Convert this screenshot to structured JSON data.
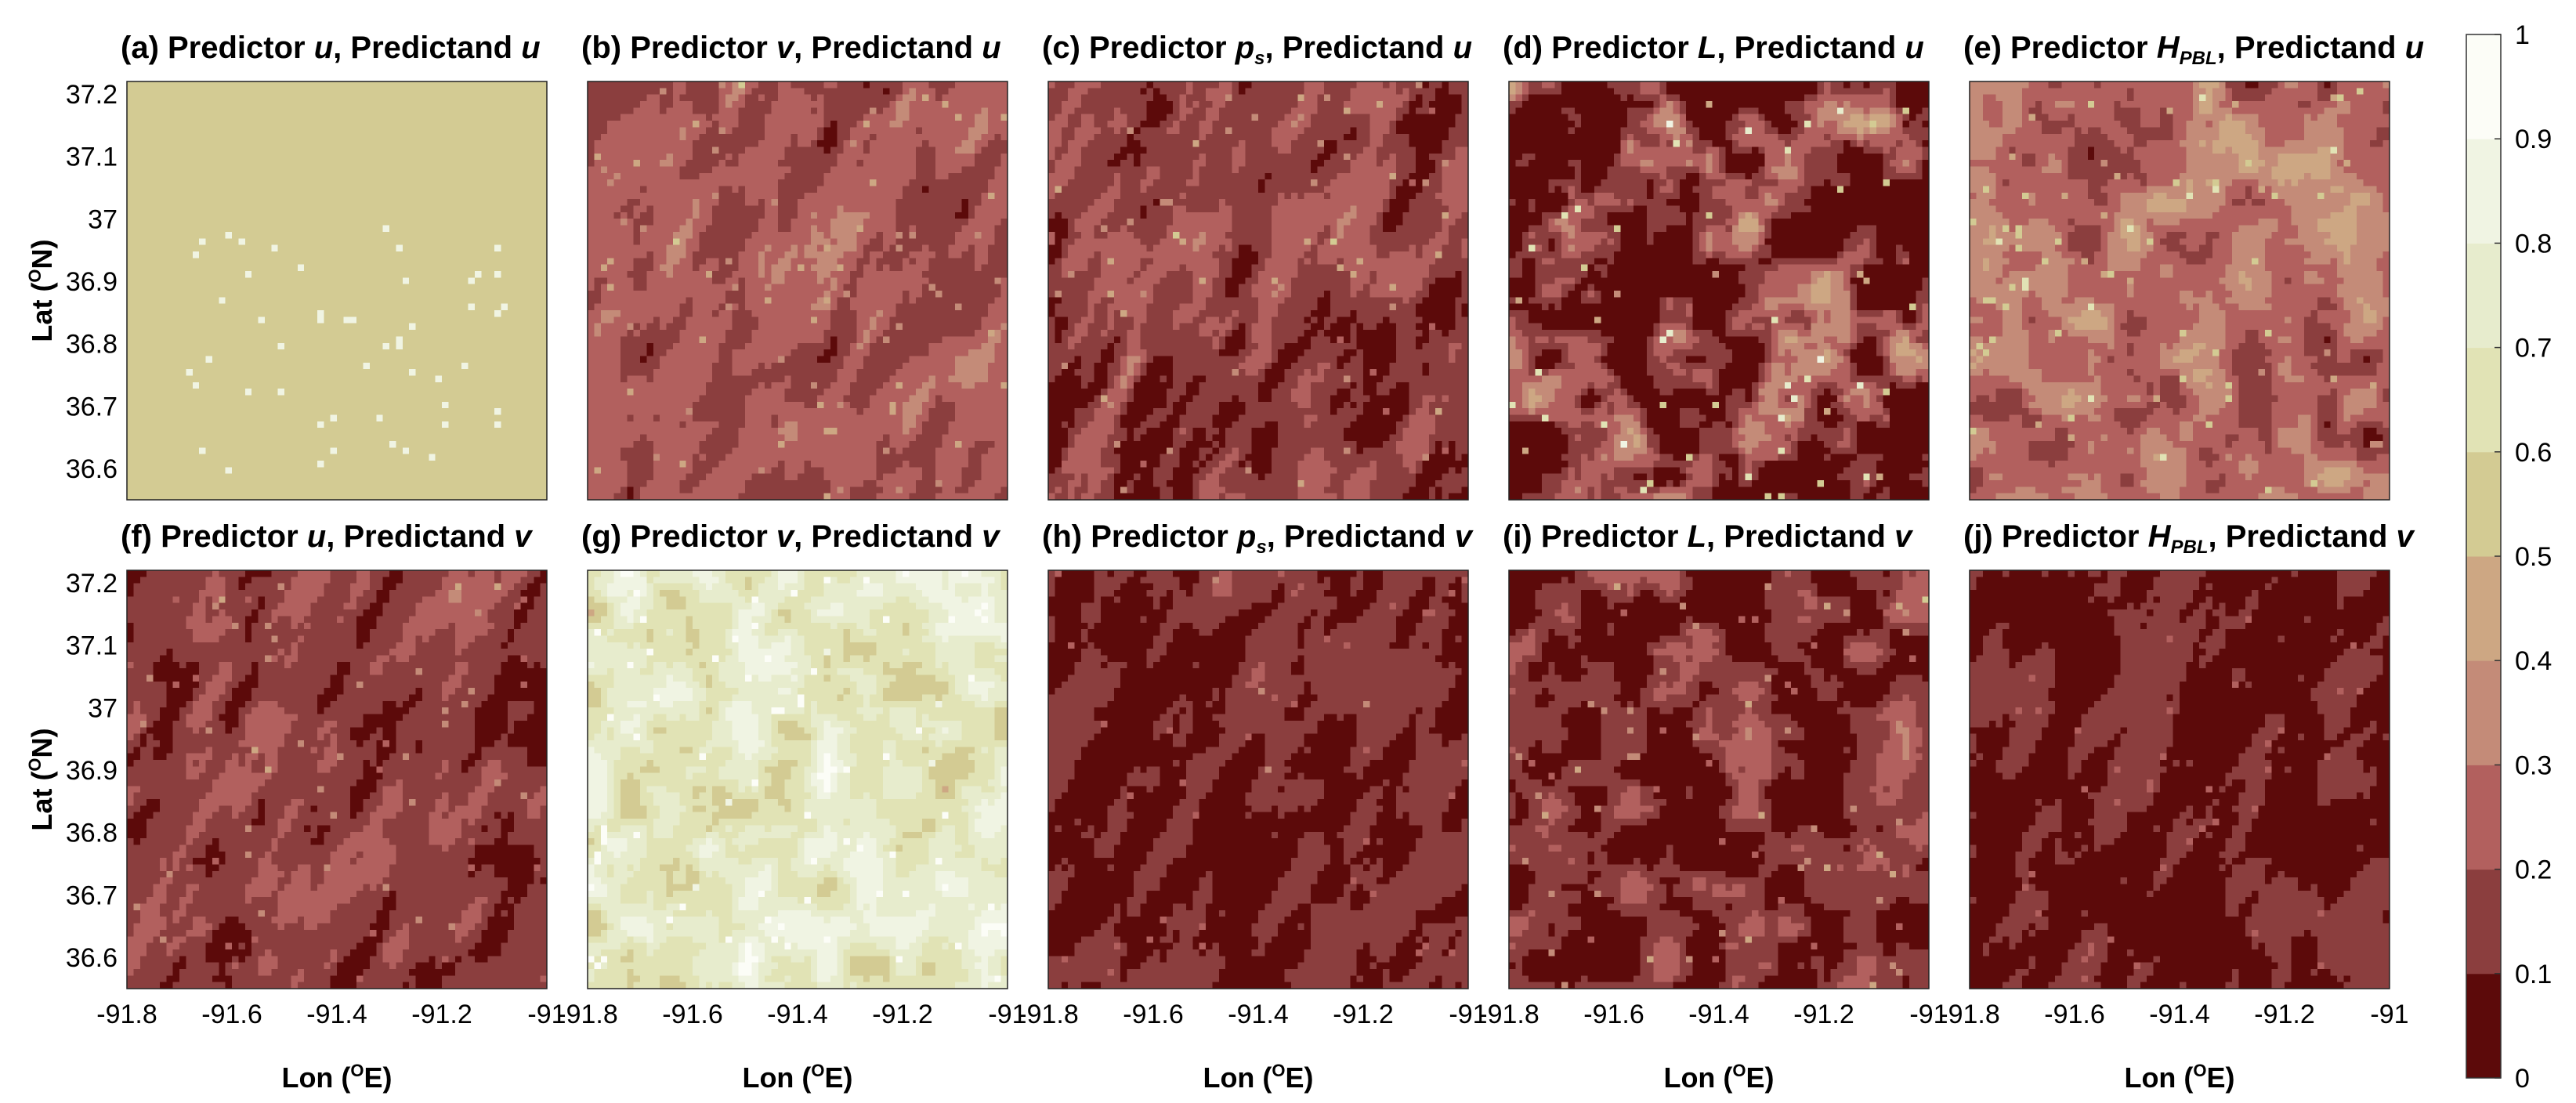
{
  "chart_data": {
    "type": "heatmap",
    "figure_description_note": "",
    "panels": [
      {
        "id": "a",
        "label": "(a) Predictor ",
        "predictor": "u",
        "predictor_sub": "",
        "mid": ", Predictand ",
        "predictand": "u",
        "base_level": 0.55,
        "spread": 0.02,
        "mottle": "speckle"
      },
      {
        "id": "b",
        "label": "(b) Predictor ",
        "predictor": "v",
        "predictor_sub": "",
        "mid": ", Predictand ",
        "predictand": "u",
        "base_level": 0.22,
        "spread": 0.12,
        "mottle": "streak"
      },
      {
        "id": "c",
        "label": "(c) Predictor ",
        "predictor": "p",
        "predictor_sub": "s",
        "mid": ", Predictand ",
        "predictand": "u",
        "base_level": 0.16,
        "spread": 0.14,
        "mottle": "streak"
      },
      {
        "id": "d",
        "label": "(d) Predictor ",
        "predictor": "L",
        "predictor_sub": "",
        "mid": ", Predictand ",
        "predictand": "u",
        "base_level": 0.14,
        "spread": 0.3,
        "mottle": "blob"
      },
      {
        "id": "e",
        "label": "(e) Predictor ",
        "predictor": "H",
        "predictor_sub": "PBL",
        "mid": ", Predictand ",
        "predictand": "u",
        "base_level": 0.28,
        "spread": 0.16,
        "mottle": "blob"
      },
      {
        "id": "f",
        "label": "(f) Predictor ",
        "predictor": "u",
        "predictor_sub": "",
        "mid": ", Predictand ",
        "predictand": "v",
        "base_level": 0.15,
        "spread": 0.12,
        "mottle": "streak"
      },
      {
        "id": "g",
        "label": "(g) Predictor ",
        "predictor": "v",
        "predictor_sub": "",
        "mid": ", Predictand ",
        "predictand": "v",
        "base_level": 0.72,
        "spread": 0.18,
        "mottle": "blob"
      },
      {
        "id": "h",
        "label": "(h) Predictor ",
        "predictor": "p",
        "predictor_sub": "s",
        "mid": ", Predictand ",
        "predictand": "v",
        "base_level": 0.1,
        "spread": 0.09,
        "mottle": "streak"
      },
      {
        "id": "i",
        "label": "(i) Predictor ",
        "predictor": "L",
        "predictor_sub": "",
        "mid": ", Predictand ",
        "predictand": "v",
        "base_level": 0.12,
        "spread": 0.16,
        "mottle": "blob"
      },
      {
        "id": "j",
        "label": "(j) Predictor ",
        "predictor": "H",
        "predictor_sub": "PBL",
        "mid": ", Predictand ",
        "predictand": "v",
        "base_level": 0.09,
        "spread": 0.08,
        "mottle": "streak"
      }
    ],
    "grid": {
      "nx": 64,
      "ny": 64
    },
    "xlim": [
      -91.8,
      -91.0
    ],
    "ylim": [
      36.55,
      37.22
    ],
    "xticks": [
      -91.8,
      -91.6,
      -91.4,
      -91.2,
      -91.0
    ],
    "xtick_labels": [
      "-91.8",
      "-91.6",
      "-91.4",
      "-91.2",
      "-91"
    ],
    "yticks": [
      36.6,
      36.7,
      36.8,
      36.9,
      37.0,
      37.1,
      37.2
    ],
    "ytick_labels": [
      "36.6",
      "36.7",
      "36.8",
      "36.9",
      "37",
      "37.1",
      "37.2"
    ],
    "xlabel": "Lon (",
    "xlabel_sup": "O",
    "xlabel_tail": "E)",
    "ylabel": "Lat (",
    "ylabel_sup": "O",
    "ylabel_tail": "N)",
    "colorbar": {
      "ticks": [
        0,
        0.1,
        0.2,
        0.3,
        0.4,
        0.5,
        0.6,
        0.7,
        0.8,
        0.9,
        1
      ],
      "tick_labels": [
        "0",
        "0.1",
        "0.2",
        "0.3",
        "0.4",
        "0.5",
        "0.6",
        "0.7",
        "0.8",
        "0.9",
        "1"
      ],
      "colors": [
        "#5c0a0a",
        "#8b3e3e",
        "#b2605e",
        "#c48b78",
        "#cda783",
        "#d3cb93",
        "#e1e3b5",
        "#e7eccd",
        "#f0f4e3",
        "#fcfdf7"
      ]
    }
  }
}
